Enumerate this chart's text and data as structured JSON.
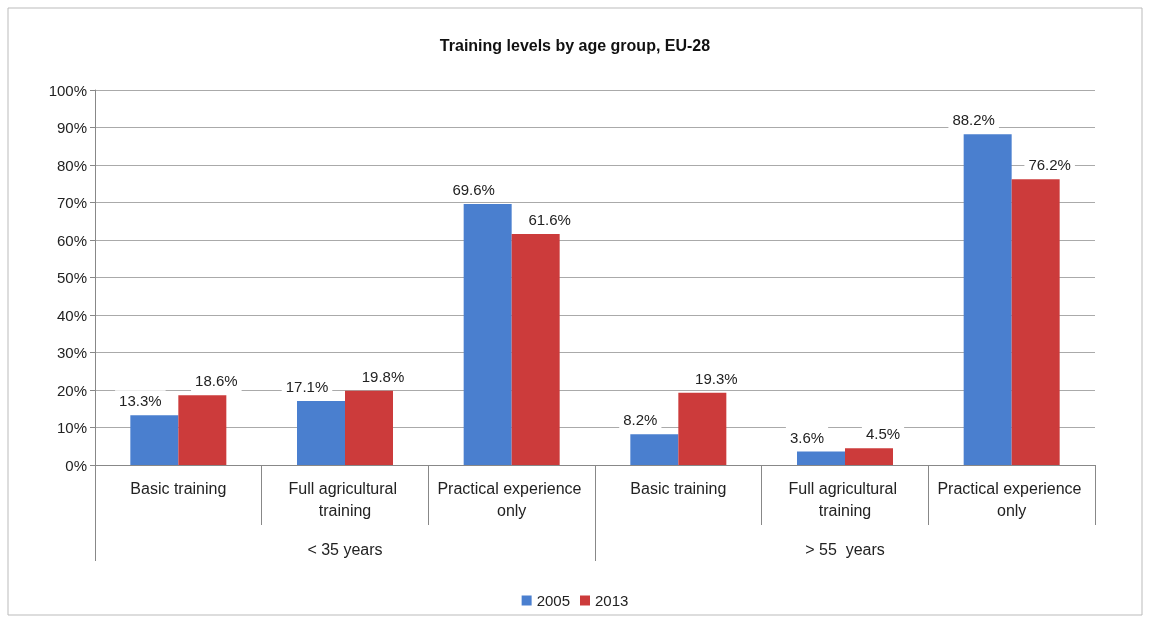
{
  "chart_data": {
    "type": "bar",
    "title": "Training levels by age group, EU-28",
    "categories": [
      "Basic training",
      "Full agricultural training",
      "Practical experience only",
      "Basic training",
      "Full agricultural training",
      "Practical experience only"
    ],
    "series": [
      {
        "name": "2005",
        "color": "#4a7fcf",
        "values": [
          13.3,
          17.1,
          69.6,
          8.2,
          3.6,
          88.2
        ],
        "value_labels": [
          "13.3%",
          "17.1%",
          "69.6%",
          "8.2%",
          "3.6%",
          "88.2%"
        ]
      },
      {
        "name": "2013",
        "color": "#cc3b3b",
        "values": [
          18.6,
          19.8,
          61.6,
          19.3,
          4.5,
          76.2
        ],
        "value_labels": [
          "18.6%",
          "19.8%",
          "61.6%",
          "19.3%",
          "4.5%",
          "76.2%"
        ]
      }
    ],
    "annotations": [
      "< 35 years",
      "> 55  years"
    ],
    "ylim": [
      0,
      100
    ],
    "yticks": [
      {
        "value": 0,
        "label": "0%"
      },
      {
        "value": 10,
        "label": "10%"
      },
      {
        "value": 20,
        "label": "20%"
      },
      {
        "value": 30,
        "label": "30%"
      },
      {
        "value": 40,
        "label": "40%"
      },
      {
        "value": 50,
        "label": "50%"
      },
      {
        "value": 60,
        "label": "60%"
      },
      {
        "value": 70,
        "label": "70%"
      },
      {
        "value": 80,
        "label": "80%"
      },
      {
        "value": 90,
        "label": "90%"
      },
      {
        "value": 100,
        "label": "100%"
      }
    ],
    "grid": "y",
    "legend": "bottom"
  }
}
